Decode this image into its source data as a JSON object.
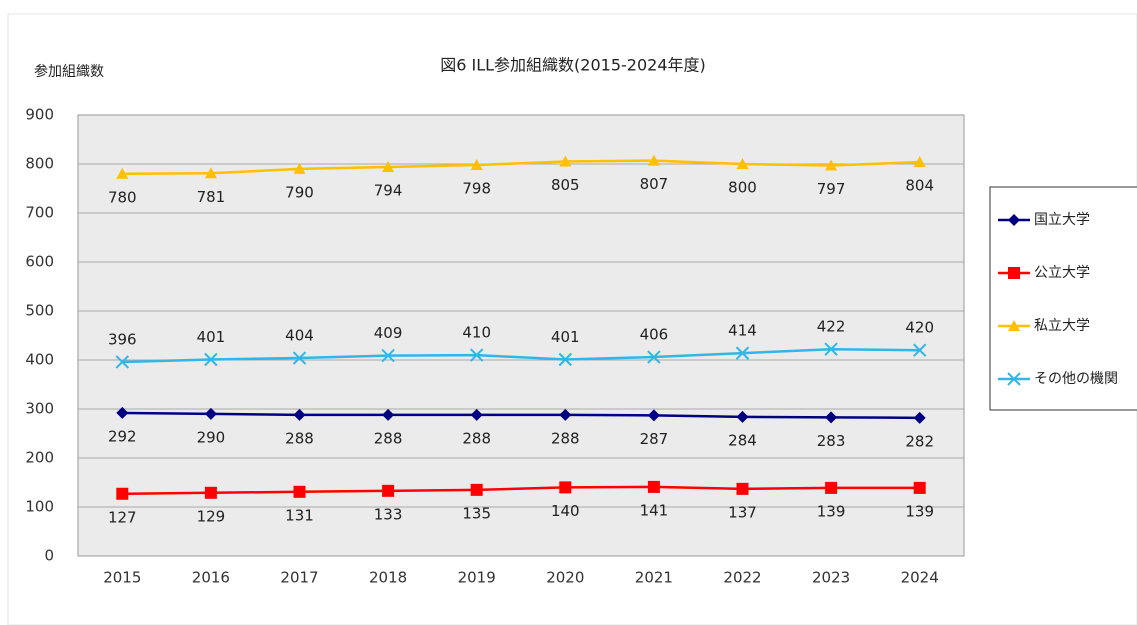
{
  "chart_data": {
    "type": "line",
    "title": "図6 ILL参加組織数(2015-2024年度)",
    "y_label": "参加組織数",
    "categories": [
      "2015",
      "2016",
      "2017",
      "2018",
      "2019",
      "2020",
      "2021",
      "2022",
      "2023",
      "2024"
    ],
    "series": [
      {
        "name": "国立大学",
        "color": "#000080",
        "marker": "diamond",
        "values": [
          292,
          290,
          288,
          288,
          288,
          288,
          287,
          284,
          283,
          282
        ]
      },
      {
        "name": "公立大学",
        "color": "#ff0000",
        "marker": "square",
        "values": [
          127,
          129,
          131,
          133,
          135,
          140,
          141,
          137,
          139,
          139
        ]
      },
      {
        "name": "私立大学",
        "color": "#ffc000",
        "marker": "triangle",
        "values": [
          780,
          781,
          790,
          794,
          798,
          805,
          807,
          800,
          797,
          804
        ]
      },
      {
        "name": "その他の機関",
        "color": "#33b5e5",
        "marker": "x",
        "values": [
          396,
          401,
          404,
          409,
          410,
          401,
          406,
          414,
          422,
          420
        ]
      }
    ],
    "ylim": [
      0,
      900
    ],
    "yticks": [
      0,
      100,
      200,
      300,
      400,
      500,
      600,
      700,
      800,
      900
    ],
    "grid": true,
    "legend": "right"
  }
}
